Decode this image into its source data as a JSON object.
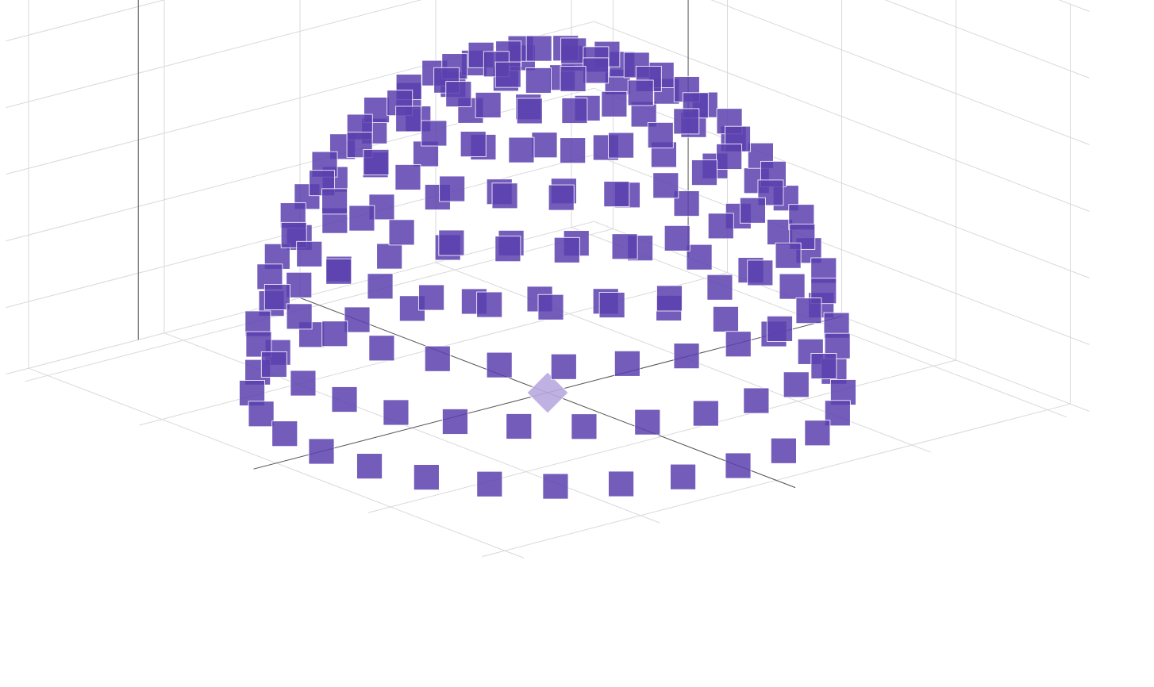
{
  "chart_data": {
    "type": "scatter",
    "projection": "3d",
    "title": "",
    "xlabel": "",
    "ylabel": "",
    "zlabel": "",
    "grid": true,
    "legend": "none",
    "xlim": [
      -1.3,
      1.3
    ],
    "ylim": [
      -1.3,
      1.3
    ],
    "zlim": [
      0,
      1.2
    ],
    "series": [
      {
        "marker": "square",
        "color": "#5b3fae",
        "opacity": 0.85,
        "shape": "hemisphere",
        "radius": 1.0,
        "latitude_rings": 9,
        "ring_point_counts": [
          28,
          28,
          27,
          26,
          24,
          21,
          18,
          14,
          9
        ]
      },
      {
        "marker": "diamond",
        "color": "#b9a8e0",
        "opacity": 0.9,
        "x": [
          0
        ],
        "y": [
          0
        ],
        "z": [
          0
        ]
      }
    ]
  }
}
